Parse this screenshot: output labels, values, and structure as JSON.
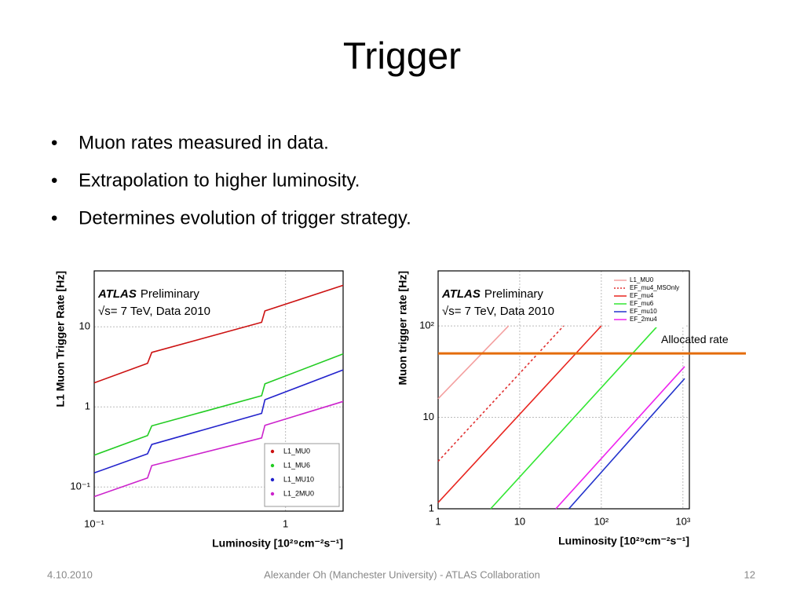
{
  "title": "Trigger",
  "bullets": [
    "Muon rates measured in data.",
    "Extrapolation to higher luminosity.",
    "Determines evolution of trigger strategy."
  ],
  "footer": {
    "date": "4.10.2010",
    "author": "Alexander Oh (Manchester University) - ATLAS Collaboration",
    "page": "12"
  },
  "chart_data": [
    {
      "type": "line",
      "log_x": true,
      "log_y": true,
      "grid": true,
      "brand": "ATLAS",
      "status": "Preliminary",
      "subtitle": "√s= 7 TeV, Data 2010",
      "x_label": "Luminosity [10²⁹cm⁻²s⁻¹]",
      "y_label": "L1 Muon Trigger Rate [Hz]",
      "xlim": [
        0.1,
        2
      ],
      "ylim": [
        0.05,
        50
      ],
      "xticks": [
        {
          "value": 0.1,
          "label": "10⁻¹"
        },
        1
      ],
      "yticks": [
        {
          "value": 0.1,
          "label": "10⁻¹"
        },
        1,
        10
      ],
      "legend": "lower right",
      "series": [
        {
          "name": "L1_MU0",
          "color": "#cc1111",
          "x": [
            0.1,
            0.19,
            0.2,
            0.75,
            0.78,
            2
          ],
          "values": [
            2.0,
            3.5,
            4.8,
            11.4,
            15.8,
            33
          ]
        },
        {
          "name": "L1_MU6",
          "color": "#22cc22",
          "x": [
            0.1,
            0.19,
            0.2,
            0.75,
            0.78,
            2
          ],
          "values": [
            0.25,
            0.44,
            0.58,
            1.38,
            1.94,
            4.6
          ]
        },
        {
          "name": "L1_MU10",
          "color": "#2222cc",
          "x": [
            0.1,
            0.19,
            0.2,
            0.75,
            0.78,
            2
          ],
          "values": [
            0.15,
            0.26,
            0.34,
            0.83,
            1.23,
            2.9
          ]
        },
        {
          "name": "L1_2MU0",
          "color": "#cc22cc",
          "x": [
            0.1,
            0.19,
            0.2,
            0.75,
            0.78,
            2
          ],
          "values": [
            0.076,
            0.13,
            0.185,
            0.41,
            0.59,
            1.17
          ]
        }
      ]
    },
    {
      "type": "line",
      "log_x": true,
      "log_y": true,
      "grid": true,
      "brand": "ATLAS",
      "status": "Preliminary",
      "subtitle": "√s= 7 TeV, Data 2010",
      "x_label": "Luminosity [10²⁹cm⁻²s⁻¹]",
      "y_label": "Muon trigger rate [Hz]",
      "xlim": [
        1,
        1200
      ],
      "ylim": [
        1,
        400
      ],
      "xticks": [
        1,
        10,
        {
          "value": 100,
          "label": "10²"
        },
        {
          "value": 1000,
          "label": "10³"
        }
      ],
      "yticks": [
        1,
        10,
        {
          "value": 100,
          "label": "10²"
        }
      ],
      "legend": "upper right",
      "allocated_rate": {
        "value": 50,
        "label": "Allocated rate",
        "color": "#e46c0a"
      },
      "series": [
        {
          "name": "L1_MU0",
          "color": "#f4a0a0",
          "x": [
            1,
            7.3
          ],
          "values": [
            16,
            100
          ]
        },
        {
          "name": "EF_mu4_MSOnly",
          "color": "#e03030",
          "dashed": true,
          "x": [
            1,
            34.5
          ],
          "values": [
            3.3,
            100
          ]
        },
        {
          "name": "EF_mu4",
          "color": "#e8251f",
          "x": [
            1,
            100
          ],
          "values": [
            1.17,
            100
          ]
        },
        {
          "name": "EF_mu6",
          "color": "#33e633",
          "x": [
            4.4,
            490
          ],
          "values": [
            1,
            100
          ]
        },
        {
          "name": "EF_mu10",
          "color": "#2233cc",
          "x": [
            40,
            1050
          ],
          "values": [
            1,
            26.6
          ]
        },
        {
          "name": "EF_2mu4",
          "color": "#ee22ee",
          "x": [
            27.7,
            1050
          ],
          "values": [
            1,
            36
          ]
        }
      ]
    }
  ]
}
